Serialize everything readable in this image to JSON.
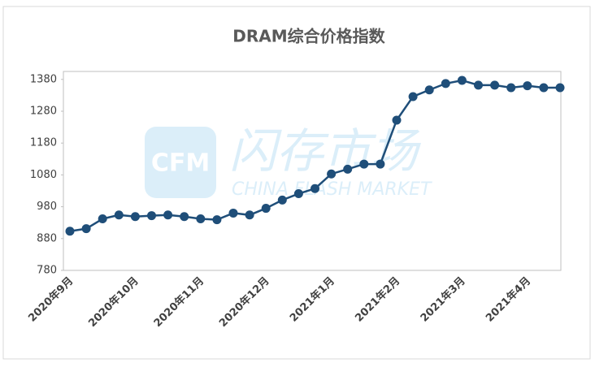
{
  "chart_data": {
    "type": "line",
    "title": "DRAM综合价格指数",
    "watermark": {
      "logo": "CFM",
      "name": "闪存市场",
      "subtitle": "CHINA FLASH MARKET"
    },
    "categories": [
      "2020年9月",
      null,
      null,
      null,
      "2020年10月",
      null,
      null,
      null,
      "2020年11月",
      null,
      null,
      null,
      "2020年12月",
      null,
      null,
      null,
      "2021年1月",
      null,
      null,
      null,
      "2021年2月",
      null,
      null,
      null,
      "2021年3月",
      null,
      null,
      null,
      "2021年4月",
      null,
      null
    ],
    "series": [
      {
        "name": "DRAM综合价格指数",
        "color": "#1f4e79",
        "values": [
          903,
          911,
          942,
          954,
          949,
          952,
          954,
          949,
          942,
          939,
          960,
          954,
          975,
          1001,
          1021,
          1037,
          1083,
          1098,
          1114,
          1114,
          1252,
          1326,
          1347,
          1367,
          1377,
          1362,
          1362,
          1354,
          1360,
          1354,
          1354
        ]
      }
    ],
    "ylim": [
      780,
      1405
    ],
    "yticks": [
      780,
      880,
      980,
      1080,
      1180,
      1280,
      1380
    ],
    "grid": false
  }
}
